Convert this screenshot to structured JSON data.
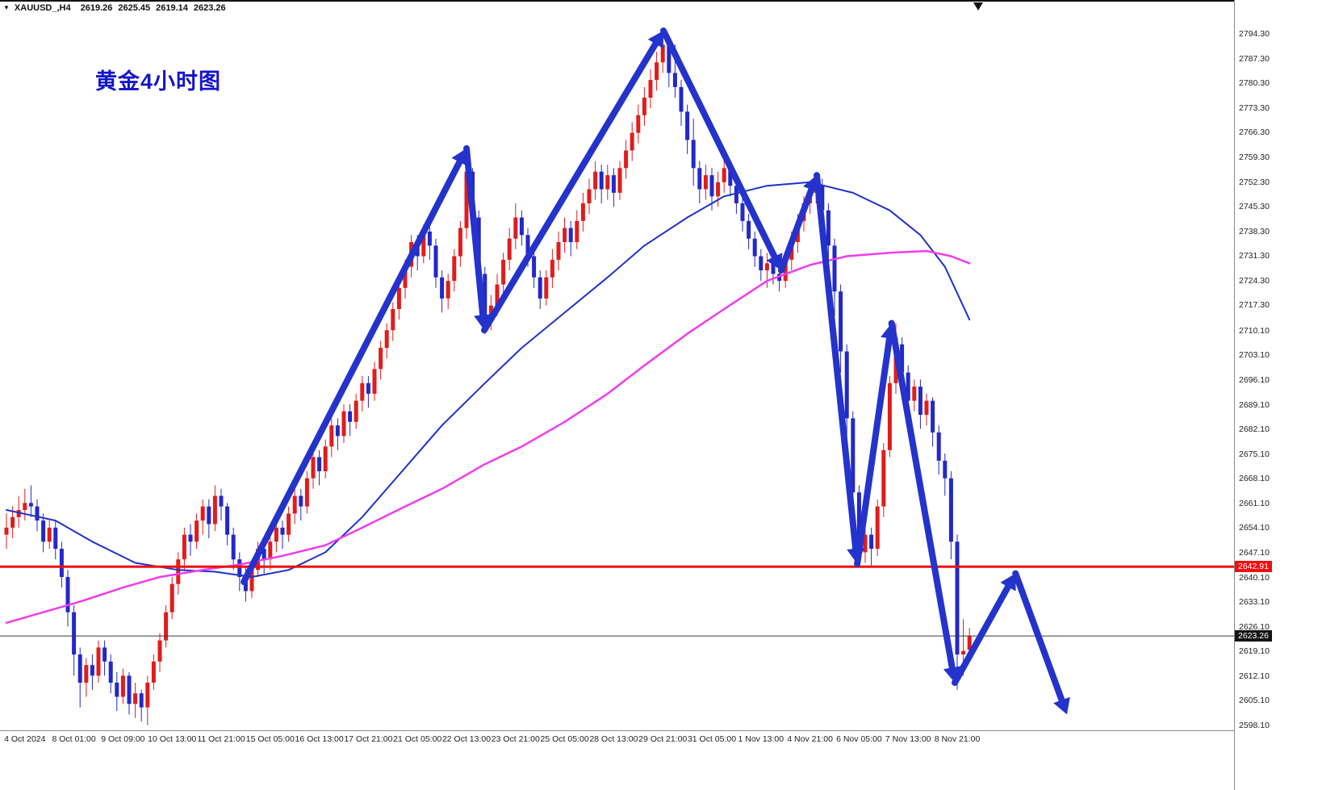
{
  "titlebar": {
    "menu_icon": "▼",
    "symbol": "XAUUSD_,H4",
    "ohlc": {
      "open": "2619.26",
      "high": "2625.45",
      "low": "2619.14",
      "close": "2623.26"
    }
  },
  "annotation_title": {
    "text": "黄金4小时图",
    "color": "#1414cc"
  },
  "price_axis": {
    "ticks": [
      "2794.30",
      "2787.30",
      "2780.30",
      "2773.30",
      "2766.30",
      "2759.30",
      "2752.30",
      "2745.30",
      "2738.30",
      "2731.30",
      "2724.30",
      "2717.30",
      "2710.10",
      "2703.10",
      "2696.10",
      "2689.10",
      "2682.10",
      "2675.10",
      "2668.10",
      "2661.10",
      "2654.10",
      "2647.10",
      "2640.10",
      "2633.10",
      "2626.10",
      "2619.10",
      "2612.10",
      "2605.10",
      "2598.10"
    ],
    "tags": [
      {
        "label": "2642.91",
        "price": 2642.91,
        "bg": "#ee1010"
      },
      {
        "label": "2623.26",
        "price": 2623.26,
        "bg": "#141414"
      }
    ]
  },
  "time_axis": {
    "labels": [
      "4 Oct 2024",
      "8 Oct 01:00",
      "9 Oct 09:00",
      "10 Oct 13:00",
      "11 Oct 21:00",
      "15 Oct 05:00",
      "16 Oct 13:00",
      "17 Oct 21:00",
      "21 Oct 05:00",
      "22 Oct 13:00",
      "23 Oct 21:00",
      "25 Oct 05:00",
      "28 Oct 13:00",
      "29 Oct 21:00",
      "31 Oct 05:00",
      "1 Nov 13:00",
      "4 Nov 21:00",
      "6 Nov 05:00",
      "7 Nov 13:00",
      "8 Nov 21:00"
    ]
  },
  "chart_data": {
    "type": "candlestick",
    "title": "XAUUSD_ H4 gold chart with hand-drawn trend arrows",
    "timeframe": "H4",
    "price_range": [
      2598.1,
      2794.3
    ],
    "candles": [
      [
        2652,
        2658,
        2648,
        2654
      ],
      [
        2654,
        2660,
        2651,
        2657
      ],
      [
        2657,
        2663,
        2654,
        2659
      ],
      [
        2659,
        2665,
        2656,
        2661
      ],
      [
        2661,
        2666,
        2657,
        2660
      ],
      [
        2660,
        2662,
        2653,
        2656
      ],
      [
        2656,
        2658,
        2647,
        2650
      ],
      [
        2650,
        2656,
        2648,
        2654
      ],
      [
        2654,
        2656,
        2645,
        2648
      ],
      [
        2648,
        2650,
        2637,
        2640
      ],
      [
        2640,
        2642,
        2626,
        2630
      ],
      [
        2630,
        2632,
        2612,
        2618
      ],
      [
        2618,
        2620,
        2603,
        2610
      ],
      [
        2610,
        2617,
        2606,
        2615
      ],
      [
        2615,
        2618,
        2608,
        2612
      ],
      [
        2612,
        2622,
        2610,
        2620
      ],
      [
        2620,
        2622,
        2612,
        2616
      ],
      [
        2616,
        2618,
        2607,
        2610
      ],
      [
        2610,
        2613,
        2602,
        2606
      ],
      [
        2606,
        2614,
        2604,
        2612
      ],
      [
        2612,
        2613,
        2601,
        2604
      ],
      [
        2604,
        2610,
        2600,
        2607
      ],
      [
        2607,
        2608,
        2599,
        2603
      ],
      [
        2603,
        2612,
        2598,
        2610
      ],
      [
        2610,
        2618,
        2608,
        2616
      ],
      [
        2616,
        2624,
        2613,
        2622
      ],
      [
        2622,
        2632,
        2620,
        2630
      ],
      [
        2630,
        2640,
        2628,
        2638
      ],
      [
        2638,
        2647,
        2635,
        2645
      ],
      [
        2645,
        2654,
        2642,
        2652
      ],
      [
        2652,
        2655,
        2646,
        2650
      ],
      [
        2650,
        2658,
        2648,
        2656
      ],
      [
        2656,
        2662,
        2652,
        2660
      ],
      [
        2660,
        2662,
        2651,
        2655
      ],
      [
        2655,
        2666,
        2653,
        2663
      ],
      [
        2663,
        2665,
        2656,
        2660
      ],
      [
        2660,
        2661,
        2649,
        2652
      ],
      [
        2652,
        2654,
        2642,
        2645
      ],
      [
        2645,
        2647,
        2636,
        2640
      ],
      [
        2640,
        2643,
        2633,
        2636
      ],
      [
        2636,
        2645,
        2634,
        2642
      ],
      [
        2642,
        2650,
        2640,
        2648
      ],
      [
        2648,
        2650,
        2641,
        2645
      ],
      [
        2645,
        2652,
        2642,
        2650
      ],
      [
        2650,
        2657,
        2647,
        2654
      ],
      [
        2654,
        2656,
        2648,
        2652
      ],
      [
        2652,
        2660,
        2650,
        2658
      ],
      [
        2658,
        2665,
        2655,
        2663
      ],
      [
        2663,
        2665,
        2656,
        2660
      ],
      [
        2660,
        2670,
        2658,
        2668
      ],
      [
        2668,
        2676,
        2665,
        2674
      ],
      [
        2674,
        2676,
        2666,
        2670
      ],
      [
        2670,
        2679,
        2668,
        2677
      ],
      [
        2677,
        2685,
        2674,
        2683
      ],
      [
        2683,
        2685,
        2676,
        2680
      ],
      [
        2680,
        2689,
        2678,
        2687
      ],
      [
        2687,
        2689,
        2680,
        2684
      ],
      [
        2684,
        2692,
        2682,
        2690
      ],
      [
        2690,
        2697,
        2687,
        2695
      ],
      [
        2695,
        2697,
        2688,
        2692
      ],
      [
        2692,
        2701,
        2690,
        2699
      ],
      [
        2699,
        2707,
        2696,
        2705
      ],
      [
        2705,
        2712,
        2702,
        2710
      ],
      [
        2710,
        2718,
        2707,
        2716
      ],
      [
        2716,
        2724,
        2713,
        2722
      ],
      [
        2722,
        2730,
        2719,
        2728
      ],
      [
        2728,
        2737,
        2725,
        2735
      ],
      [
        2735,
        2737,
        2727,
        2731
      ],
      [
        2731,
        2740,
        2729,
        2738
      ],
      [
        2738,
        2740,
        2730,
        2734
      ],
      [
        2734,
        2736,
        2722,
        2725
      ],
      [
        2725,
        2727,
        2715,
        2719
      ],
      [
        2719,
        2726,
        2716,
        2724
      ],
      [
        2724,
        2733,
        2721,
        2731
      ],
      [
        2731,
        2741,
        2728,
        2739
      ],
      [
        2739,
        2759,
        2736,
        2755
      ],
      [
        2755,
        2756,
        2738,
        2742
      ],
      [
        2742,
        2744,
        2722,
        2726
      ],
      [
        2726,
        2728,
        2709,
        2713
      ],
      [
        2713,
        2720,
        2710,
        2717
      ],
      [
        2717,
        2726,
        2714,
        2723
      ],
      [
        2723,
        2732,
        2720,
        2730
      ],
      [
        2730,
        2739,
        2727,
        2736
      ],
      [
        2736,
        2746,
        2733,
        2742
      ],
      [
        2742,
        2744,
        2734,
        2737
      ],
      [
        2737,
        2739,
        2728,
        2731
      ],
      [
        2731,
        2733,
        2722,
        2725
      ],
      [
        2725,
        2727,
        2716,
        2719
      ],
      [
        2719,
        2727,
        2717,
        2725
      ],
      [
        2725,
        2733,
        2722,
        2730
      ],
      [
        2730,
        2738,
        2727,
        2735
      ],
      [
        2735,
        2742,
        2732,
        2739
      ],
      [
        2739,
        2741,
        2731,
        2735
      ],
      [
        2735,
        2744,
        2733,
        2741
      ],
      [
        2741,
        2749,
        2738,
        2746
      ],
      [
        2746,
        2753,
        2743,
        2750
      ],
      [
        2750,
        2758,
        2747,
        2755
      ],
      [
        2755,
        2757,
        2746,
        2750
      ],
      [
        2750,
        2757,
        2747,
        2754
      ],
      [
        2754,
        2756,
        2745,
        2749
      ],
      [
        2749,
        2758,
        2747,
        2756
      ],
      [
        2756,
        2764,
        2753,
        2761
      ],
      [
        2761,
        2769,
        2758,
        2766
      ],
      [
        2766,
        2774,
        2763,
        2771
      ],
      [
        2771,
        2779,
        2768,
        2776
      ],
      [
        2776,
        2784,
        2773,
        2781
      ],
      [
        2781,
        2789,
        2778,
        2786
      ],
      [
        2786,
        2794,
        2783,
        2791
      ],
      [
        2791,
        2793,
        2779,
        2783
      ],
      [
        2783,
        2791,
        2776,
        2779
      ],
      [
        2779,
        2781,
        2768,
        2772
      ],
      [
        2772,
        2774,
        2760,
        2764
      ],
      [
        2764,
        2770,
        2751,
        2756
      ],
      [
        2756,
        2758,
        2746,
        2750
      ],
      [
        2750,
        2757,
        2747,
        2754
      ],
      [
        2754,
        2756,
        2744,
        2748
      ],
      [
        2748,
        2755,
        2745,
        2752
      ],
      [
        2752,
        2759,
        2749,
        2756
      ],
      [
        2756,
        2758,
        2748,
        2751
      ],
      [
        2751,
        2753,
        2743,
        2746
      ],
      [
        2746,
        2748,
        2738,
        2741
      ],
      [
        2741,
        2743,
        2733,
        2736
      ],
      [
        2736,
        2738,
        2728,
        2731
      ],
      [
        2731,
        2733,
        2724,
        2727
      ],
      [
        2727,
        2732,
        2722,
        2729
      ],
      [
        2729,
        2731,
        2723,
        2726
      ],
      [
        2726,
        2728,
        2721,
        2724
      ],
      [
        2724,
        2732,
        2722,
        2730
      ],
      [
        2730,
        2738,
        2727,
        2735
      ],
      [
        2735,
        2743,
        2732,
        2741
      ],
      [
        2741,
        2748,
        2738,
        2746
      ],
      [
        2746,
        2752,
        2743,
        2749
      ],
      [
        2749,
        2754,
        2746,
        2751
      ],
      [
        2751,
        2753,
        2740,
        2744
      ],
      [
        2744,
        2746,
        2729,
        2734
      ],
      [
        2734,
        2736,
        2714,
        2721
      ],
      [
        2721,
        2723,
        2698,
        2704
      ],
      [
        2704,
        2706,
        2678,
        2685
      ],
      [
        2685,
        2687,
        2656,
        2664
      ],
      [
        2664,
        2666,
        2643,
        2647
      ],
      [
        2647,
        2656,
        2644,
        2652
      ],
      [
        2652,
        2654,
        2643,
        2648
      ],
      [
        2648,
        2662,
        2646,
        2660
      ],
      [
        2660,
        2678,
        2657,
        2676
      ],
      [
        2676,
        2697,
        2674,
        2695
      ],
      [
        2695,
        2712,
        2692,
        2706
      ],
      [
        2706,
        2708,
        2694,
        2698
      ],
      [
        2698,
        2700,
        2686,
        2690
      ],
      [
        2690,
        2696,
        2687,
        2694
      ],
      [
        2694,
        2696,
        2682,
        2686
      ],
      [
        2686,
        2692,
        2683,
        2690
      ],
      [
        2690,
        2691,
        2677,
        2681
      ],
      [
        2681,
        2683,
        2669,
        2673
      ],
      [
        2673,
        2675,
        2663,
        2668
      ],
      [
        2668,
        2670,
        2645,
        2650
      ],
      [
        2650,
        2652,
        2608,
        2618
      ],
      [
        2618,
        2628,
        2612,
        2619
      ],
      [
        2619.3,
        2625.5,
        2619.1,
        2623.3
      ]
    ],
    "overlays": {
      "ma_blue": {
        "name": "blue-moving-average",
        "color": "#1c33cc",
        "points": [
          [
            0,
            2659
          ],
          [
            8,
            2656
          ],
          [
            14,
            2650
          ],
          [
            21,
            2644
          ],
          [
            28,
            2642
          ],
          [
            34,
            2641.5
          ],
          [
            40,
            2640
          ],
          [
            46,
            2642
          ],
          [
            52,
            2647
          ],
          [
            58,
            2657
          ],
          [
            65,
            2671
          ],
          [
            71,
            2683
          ],
          [
            78,
            2695
          ],
          [
            84,
            2705
          ],
          [
            91,
            2715
          ],
          [
            98,
            2725
          ],
          [
            104,
            2734
          ],
          [
            111,
            2742
          ],
          [
            117,
            2748
          ],
          [
            124,
            2751
          ],
          [
            131,
            2752
          ],
          [
            138,
            2749
          ],
          [
            144,
            2744
          ],
          [
            149,
            2737
          ],
          [
            153,
            2728
          ],
          [
            157,
            2713
          ]
        ]
      },
      "ma_magenta": {
        "name": "magenta-moving-average",
        "color": "#f03cf0",
        "points": [
          [
            0,
            2627
          ],
          [
            6,
            2630
          ],
          [
            12,
            2633
          ],
          [
            19,
            2637
          ],
          [
            25,
            2640
          ],
          [
            32,
            2642
          ],
          [
            38,
            2643.5
          ],
          [
            45,
            2646
          ],
          [
            52,
            2649
          ],
          [
            58,
            2654
          ],
          [
            65,
            2660
          ],
          [
            71,
            2665
          ],
          [
            78,
            2672
          ],
          [
            84,
            2677
          ],
          [
            91,
            2684
          ],
          [
            98,
            2692
          ],
          [
            104,
            2700
          ],
          [
            111,
            2709
          ],
          [
            117,
            2716
          ],
          [
            124,
            2724
          ],
          [
            131,
            2728.5
          ],
          [
            137,
            2731
          ],
          [
            144,
            2732
          ],
          [
            150,
            2732.5
          ],
          [
            154,
            2731
          ],
          [
            157,
            2729
          ]
        ]
      },
      "hlines": [
        {
          "price": 2642.91,
          "color": "#ee1010",
          "width": 3
        },
        {
          "price": 2623.26,
          "color": "#3a3a3a",
          "width": 1
        }
      ],
      "trend_arrows": {
        "color": "#2433cc",
        "points": [
          [
            38.7,
            2638.6
          ],
          [
            75,
            2761.6
          ],
          [
            77.9,
            2710
          ],
          [
            107.1,
            2795
          ],
          [
            126.3,
            2727
          ],
          [
            132.1,
            2754
          ],
          [
            138.7,
            2643.7
          ],
          [
            144.3,
            2712
          ],
          [
            154.6,
            2610
          ],
          [
            164.5,
            2641
          ],
          [
            172.9,
            2601
          ]
        ]
      }
    },
    "colors": {
      "up": "#e01c1c",
      "down": "#2328c8",
      "background": "#ffffff"
    }
  }
}
